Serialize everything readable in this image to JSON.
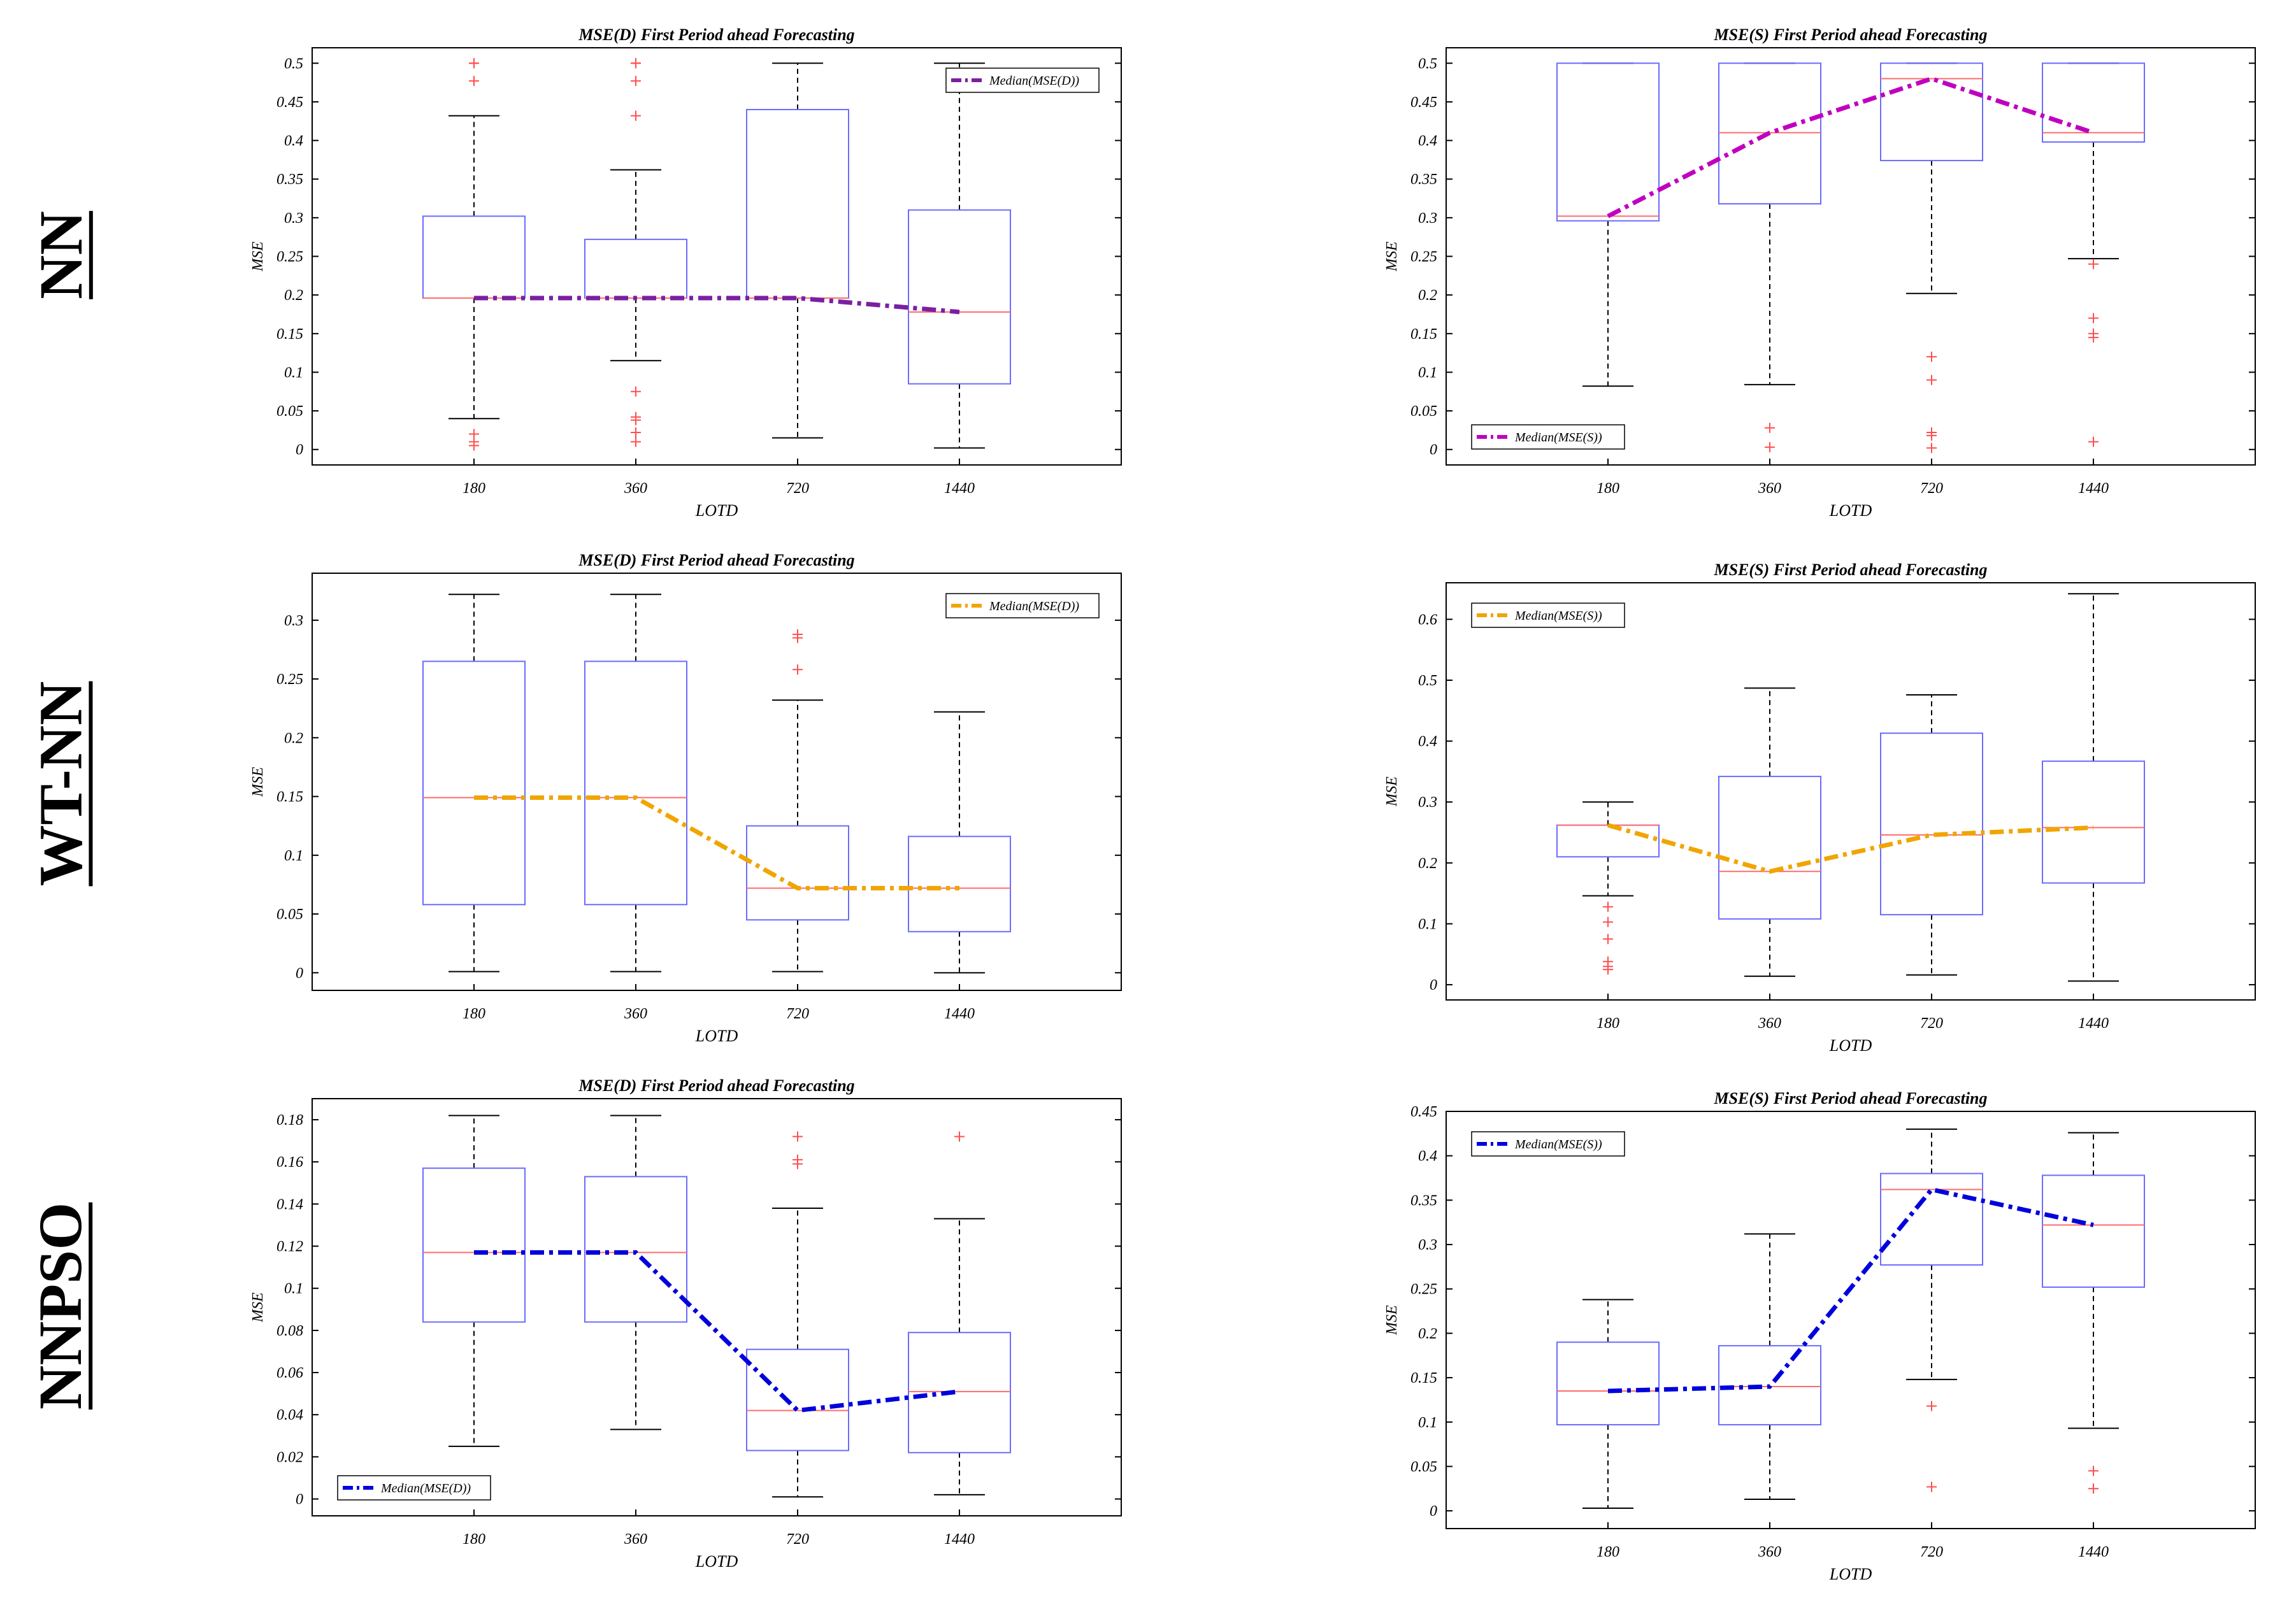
{
  "row_labels": [
    "NN",
    "WT-NN",
    "NNPSO"
  ],
  "colors": {
    "box": "#6b6bff",
    "median_line": "#ff6b6b",
    "whisker": "#000000",
    "outlier": "#ff4d4d",
    "purple": "#7b1fa2",
    "magenta": "#c000c0",
    "orange": "#f0a500",
    "blue": "#0000dd"
  },
  "chart_data": [
    {
      "type": "box",
      "title": "MSE(D) First Period ahead Forecasting",
      "xlabel": "LOTD",
      "ylabel": "MSE",
      "categories": [
        "180",
        "360",
        "720",
        "1440"
      ],
      "ylim": [
        -0.02,
        0.52
      ],
      "yticks": [
        0,
        0.05,
        0.1,
        0.15,
        0.2,
        0.25,
        0.3,
        0.35,
        0.4,
        0.45,
        0.5
      ],
      "ytick_labels": [
        "0",
        "0.05",
        "0.1",
        "0.15",
        "0.2",
        "0.25",
        "0.3",
        "0.35",
        "0.4",
        "0.45",
        "0.5"
      ],
      "boxes": [
        {
          "whisker_low": 0.04,
          "q1": 0.196,
          "median": 0.196,
          "q3": 0.302,
          "whisker_high": 0.432,
          "outliers": [
            0.5,
            0.5,
            0.477,
            0.02,
            0.01,
            0.005
          ]
        },
        {
          "whisker_low": 0.115,
          "q1": 0.196,
          "median": 0.196,
          "q3": 0.272,
          "whisker_high": 0.362,
          "outliers": [
            0.5,
            0.5,
            0.477,
            0.432,
            0.075,
            0.042,
            0.038,
            0.022,
            0.01
          ]
        },
        {
          "whisker_low": 0.015,
          "q1": 0.196,
          "median": 0.196,
          "q3": 0.44,
          "whisker_high": 0.5,
          "outliers": []
        },
        {
          "whisker_low": 0.002,
          "q1": 0.085,
          "median": 0.178,
          "q3": 0.31,
          "whisker_high": 0.5,
          "outliers": []
        }
      ],
      "median_series": {
        "name": "Median(MSE(D))",
        "values": [
          0.196,
          0.196,
          0.196,
          0.178
        ],
        "color": "#7b1fa2"
      },
      "legend": "top-right"
    },
    {
      "type": "box",
      "title": "MSE(S) First Period ahead Forecasting",
      "xlabel": "LOTD",
      "ylabel": "MSE",
      "categories": [
        "180",
        "360",
        "720",
        "1440"
      ],
      "ylim": [
        -0.02,
        0.52
      ],
      "yticks": [
        0,
        0.05,
        0.1,
        0.15,
        0.2,
        0.25,
        0.3,
        0.35,
        0.4,
        0.45,
        0.5
      ],
      "ytick_labels": [
        "0",
        "0.05",
        "0.1",
        "0.15",
        "0.2",
        "0.25",
        "0.3",
        "0.35",
        "0.4",
        "0.45",
        "0.5"
      ],
      "boxes": [
        {
          "whisker_low": 0.082,
          "q1": 0.296,
          "median": 0.302,
          "q3": 0.5,
          "whisker_high": 0.5,
          "outliers": []
        },
        {
          "whisker_low": 0.084,
          "q1": 0.318,
          "median": 0.41,
          "q3": 0.5,
          "whisker_high": 0.5,
          "outliers": [
            0.028,
            0.003
          ]
        },
        {
          "whisker_low": 0.202,
          "q1": 0.374,
          "median": 0.48,
          "q3": 0.5,
          "whisker_high": 0.5,
          "outliers": [
            0.12,
            0.09,
            0.022,
            0.018,
            0.002
          ]
        },
        {
          "whisker_low": 0.247,
          "q1": 0.398,
          "median": 0.41,
          "q3": 0.5,
          "whisker_high": 0.5,
          "outliers": [
            0.24,
            0.17,
            0.15,
            0.145,
            0.01
          ]
        }
      ],
      "median_series": {
        "name": "Median(MSE(S))",
        "values": [
          0.302,
          0.41,
          0.48,
          0.41
        ],
        "color": "#c000c0"
      },
      "legend": "bottom-left"
    },
    {
      "type": "box",
      "title": "MSE(D) First Period ahead Forecasting",
      "xlabel": "LOTD",
      "ylabel": "MSE",
      "categories": [
        "180",
        "360",
        "720",
        "1440"
      ],
      "ylim": [
        -0.015,
        0.34
      ],
      "yticks": [
        0,
        0.05,
        0.1,
        0.15,
        0.2,
        0.25,
        0.3
      ],
      "ytick_labels": [
        "0",
        "0.05",
        "0.1",
        "0.15",
        "0.2",
        "0.25",
        "0.3"
      ],
      "boxes": [
        {
          "whisker_low": 0.001,
          "q1": 0.058,
          "median": 0.149,
          "q3": 0.265,
          "whisker_high": 0.322,
          "outliers": []
        },
        {
          "whisker_low": 0.001,
          "q1": 0.058,
          "median": 0.149,
          "q3": 0.265,
          "whisker_high": 0.322,
          "outliers": []
        },
        {
          "whisker_low": 0.001,
          "q1": 0.045,
          "median": 0.072,
          "q3": 0.125,
          "whisker_high": 0.232,
          "outliers": [
            0.288,
            0.285,
            0.258
          ]
        },
        {
          "whisker_low": 0.0,
          "q1": 0.035,
          "median": 0.072,
          "q3": 0.116,
          "whisker_high": 0.222,
          "outliers": []
        }
      ],
      "median_series": {
        "name": "Median(MSE(D))",
        "values": [
          0.149,
          0.149,
          0.072,
          0.072
        ],
        "color": "#f0a500"
      },
      "legend": "top-right"
    },
    {
      "type": "box",
      "title": "MSE(S) First Period ahead Forecasting",
      "xlabel": "LOTD",
      "ylabel": "MSE",
      "categories": [
        "180",
        "360",
        "720",
        "1440"
      ],
      "ylim": [
        -0.025,
        0.66
      ],
      "yticks": [
        0,
        0.1,
        0.2,
        0.3,
        0.4,
        0.5,
        0.6
      ],
      "ytick_labels": [
        "0",
        "0.1",
        "0.2",
        "0.3",
        "0.4",
        "0.5",
        "0.6"
      ],
      "boxes": [
        {
          "whisker_low": 0.146,
          "q1": 0.21,
          "median": 0.262,
          "q3": 0.262,
          "whisker_high": 0.3,
          "outliers": [
            0.128,
            0.103,
            0.075,
            0.038,
            0.03,
            0.025
          ]
        },
        {
          "whisker_low": 0.014,
          "q1": 0.108,
          "median": 0.186,
          "q3": 0.342,
          "whisker_high": 0.487,
          "outliers": []
        },
        {
          "whisker_low": 0.016,
          "q1": 0.115,
          "median": 0.246,
          "q3": 0.413,
          "whisker_high": 0.476,
          "outliers": []
        },
        {
          "whisker_low": 0.006,
          "q1": 0.167,
          "median": 0.258,
          "q3": 0.367,
          "whisker_high": 0.642,
          "outliers": []
        }
      ],
      "median_series": {
        "name": "Median(MSE(S))",
        "values": [
          0.262,
          0.186,
          0.246,
          0.258
        ],
        "color": "#f0a500"
      },
      "legend": "top-left"
    },
    {
      "type": "box",
      "title": "MSE(D) First Period ahead Forecasting",
      "xlabel": "LOTD",
      "ylabel": "MSE",
      "categories": [
        "180",
        "360",
        "720",
        "1440"
      ],
      "ylim": [
        -0.008,
        0.19
      ],
      "yticks": [
        0,
        0.02,
        0.04,
        0.06,
        0.08,
        0.1,
        0.12,
        0.14,
        0.16,
        0.18
      ],
      "ytick_labels": [
        "0",
        "0.02",
        "0.04",
        "0.06",
        "0.08",
        "0.1",
        "0.12",
        "0.14",
        "0.16",
        "0.18"
      ],
      "boxes": [
        {
          "whisker_low": 0.025,
          "q1": 0.084,
          "median": 0.117,
          "q3": 0.157,
          "whisker_high": 0.182,
          "outliers": []
        },
        {
          "whisker_low": 0.033,
          "q1": 0.084,
          "median": 0.117,
          "q3": 0.153,
          "whisker_high": 0.182,
          "outliers": []
        },
        {
          "whisker_low": 0.001,
          "q1": 0.023,
          "median": 0.042,
          "q3": 0.071,
          "whisker_high": 0.138,
          "outliers": [
            0.172,
            0.161,
            0.159
          ]
        },
        {
          "whisker_low": 0.002,
          "q1": 0.022,
          "median": 0.051,
          "q3": 0.079,
          "whisker_high": 0.133,
          "outliers": [
            0.172
          ]
        }
      ],
      "median_series": {
        "name": "Median(MSE(D))",
        "values": [
          0.117,
          0.117,
          0.042,
          0.051
        ],
        "color": "#0000dd"
      },
      "legend": "bottom-left"
    },
    {
      "type": "box",
      "title": "MSE(S) First Period ahead Forecasting",
      "xlabel": "LOTD",
      "ylabel": "MSE",
      "categories": [
        "180",
        "360",
        "720",
        "1440"
      ],
      "ylim": [
        -0.02,
        0.45
      ],
      "yticks": [
        0,
        0.05,
        0.1,
        0.15,
        0.2,
        0.25,
        0.3,
        0.35,
        0.4,
        0.45
      ],
      "ytick_labels": [
        "0",
        "0.05",
        "0.1",
        "0.15",
        "0.2",
        "0.25",
        "0.3",
        "0.35",
        "0.4",
        "0.45"
      ],
      "boxes": [
        {
          "whisker_low": 0.003,
          "q1": 0.097,
          "median": 0.135,
          "q3": 0.19,
          "whisker_high": 0.238,
          "outliers": []
        },
        {
          "whisker_low": 0.013,
          "q1": 0.097,
          "median": 0.14,
          "q3": 0.186,
          "whisker_high": 0.312,
          "outliers": []
        },
        {
          "whisker_low": 0.148,
          "q1": 0.277,
          "median": 0.362,
          "q3": 0.38,
          "whisker_high": 0.43,
          "outliers": [
            0.118,
            0.027
          ]
        },
        {
          "whisker_low": 0.093,
          "q1": 0.252,
          "median": 0.322,
          "q3": 0.378,
          "whisker_high": 0.426,
          "outliers": [
            0.045,
            0.025
          ]
        }
      ],
      "median_series": {
        "name": "Median(MSE(S))",
        "values": [
          0.135,
          0.14,
          0.362,
          0.322
        ],
        "color": "#0000dd"
      },
      "legend": "top-left"
    }
  ]
}
